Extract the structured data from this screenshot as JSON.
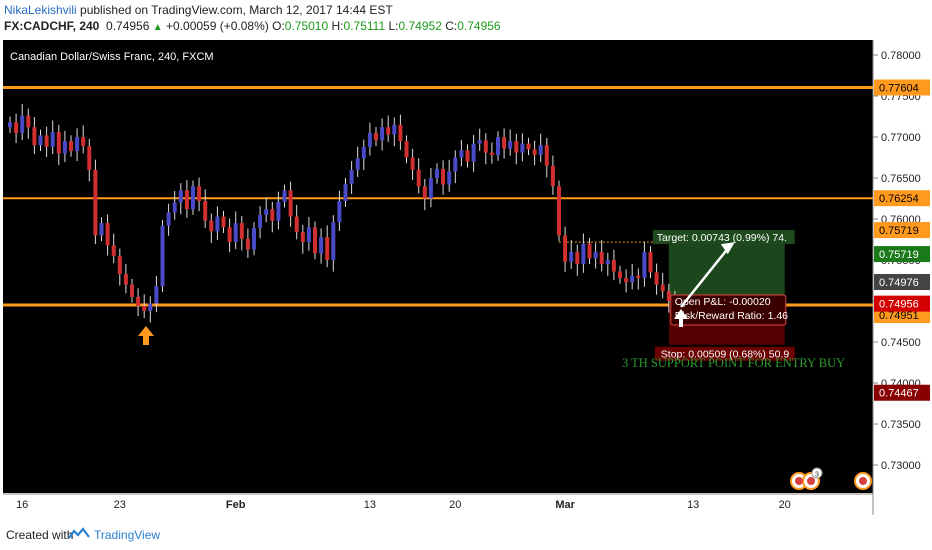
{
  "header": {
    "author": "NikaLekishvili",
    "published": " published on TradingView.com, March 12, 2017 14:44 EST",
    "symbol": "FX:CADCHF, 240",
    "last": "0.74956",
    "change": "+0.00059 (+0.08%)",
    "open_label": "O:",
    "open": "0.75010",
    "high_label": "H:",
    "high": "0.75111",
    "low_label": "L:",
    "low": "0.74952",
    "close_label": "C:",
    "close": "0.74956"
  },
  "footer": {
    "created": "Created with",
    "brand": "TradingView"
  },
  "colors": {
    "bull": "#4a4ac8",
    "bear": "#d23030",
    "level": "#ff9a1e",
    "target_fill": "#1e4a1e",
    "stop_fill": "#5a0000"
  },
  "chart_data": {
    "type": "candlestick",
    "title": "Canadian Dollar/Swiss Franc, 240, FXCM",
    "ylim": [
      0.7272,
      0.7811
    ],
    "price_ticks": [
      "0.78000",
      "0.77500",
      "0.77000",
      "0.76500",
      "0.76000",
      "0.75500",
      "0.75000",
      "0.74500",
      "0.74000",
      "0.73500",
      "0.73000"
    ],
    "price_tick_values": [
      0.78,
      0.775,
      0.77,
      0.765,
      0.76,
      0.755,
      0.75,
      0.745,
      0.74,
      0.735,
      0.73
    ],
    "time_ticks": [
      {
        "label": "16",
        "index": 2
      },
      {
        "label": "23",
        "index": 18
      },
      {
        "label": "Feb",
        "index": 37
      },
      {
        "label": "13",
        "index": 59
      },
      {
        "label": "20",
        "index": 73
      },
      {
        "label": "Mar",
        "index": 91
      },
      {
        "label": "13",
        "index": 112
      },
      {
        "label": "20",
        "index": 127
      }
    ],
    "levels": [
      0.77604,
      0.76254,
      0.74951
    ],
    "level_labels": [
      "0.77604",
      "0.76254",
      "0.74951"
    ],
    "markers": [
      {
        "label": "0.75719",
        "value": 0.75719,
        "bg": "#ff9a1e",
        "fg": "#000"
      },
      {
        "label": "0.75719",
        "value": 0.75719,
        "bg": "#1a7a1a",
        "fg": "#fff",
        "offset": 1
      },
      {
        "label": "0.74976",
        "value": 0.74976,
        "bg": "#444",
        "fg": "#fff",
        "offset": 1
      },
      {
        "label": "0.74956",
        "value": 0.74956,
        "bg": "#d40000",
        "fg": "#fff",
        "offset": 1
      },
      {
        "label": "0.74467",
        "value": 0.74467,
        "bg": "#8a0000",
        "fg": "#fff"
      }
    ],
    "position": {
      "entry": 0.74976,
      "target": 0.75719,
      "stop": 0.74467,
      "start_index": 108,
      "end_index": 127,
      "target_text": "Target: 0.00743 (0.99%) 74.",
      "pnl_text": "Open P&L: -0.00020",
      "rr_text": "Risk/Reward Ratio: 1.46",
      "stop_text": "Stop: 0.00509 (0.68%) 50.9"
    },
    "annotation": "3 TH SUPPORT POINT FOR ENTRY BUY",
    "closes": [
      0.7718,
      0.7705,
      0.7726,
      0.7712,
      0.769,
      0.7702,
      0.7688,
      0.7706,
      0.768,
      0.7695,
      0.7683,
      0.77,
      0.7689,
      0.766,
      0.758,
      0.7595,
      0.7568,
      0.7555,
      0.7533,
      0.752,
      0.7505,
      0.7494,
      0.7488,
      0.7497,
      0.7518,
      0.7592,
      0.7608,
      0.762,
      0.7635,
      0.7612,
      0.764,
      0.7622,
      0.7598,
      0.7585,
      0.7603,
      0.759,
      0.7572,
      0.7595,
      0.7576,
      0.7563,
      0.7589,
      0.7605,
      0.7612,
      0.7598,
      0.7621,
      0.7635,
      0.7603,
      0.7584,
      0.7572,
      0.759,
      0.7558,
      0.7578,
      0.755,
      0.7596,
      0.7622,
      0.7643,
      0.766,
      0.7674,
      0.7688,
      0.7705,
      0.7696,
      0.7712,
      0.7703,
      0.7715,
      0.7695,
      0.7675,
      0.766,
      0.764,
      0.7625,
      0.765,
      0.7661,
      0.7642,
      0.7658,
      0.7675,
      0.7684,
      0.767,
      0.7692,
      0.7696,
      0.7681,
      0.7678,
      0.77,
      0.7686,
      0.7695,
      0.7681,
      0.7692,
      0.7685,
      0.7678,
      0.769,
      0.7665,
      0.764,
      0.758,
      0.7548,
      0.756,
      0.7545,
      0.757,
      0.7552,
      0.756,
      0.7545,
      0.755,
      0.7536,
      0.7528,
      0.7523,
      0.7531,
      0.7528,
      0.756,
      0.7535,
      0.752,
      0.7512,
      0.75,
      0.7495,
      0.7488,
      0.7497
    ]
  }
}
